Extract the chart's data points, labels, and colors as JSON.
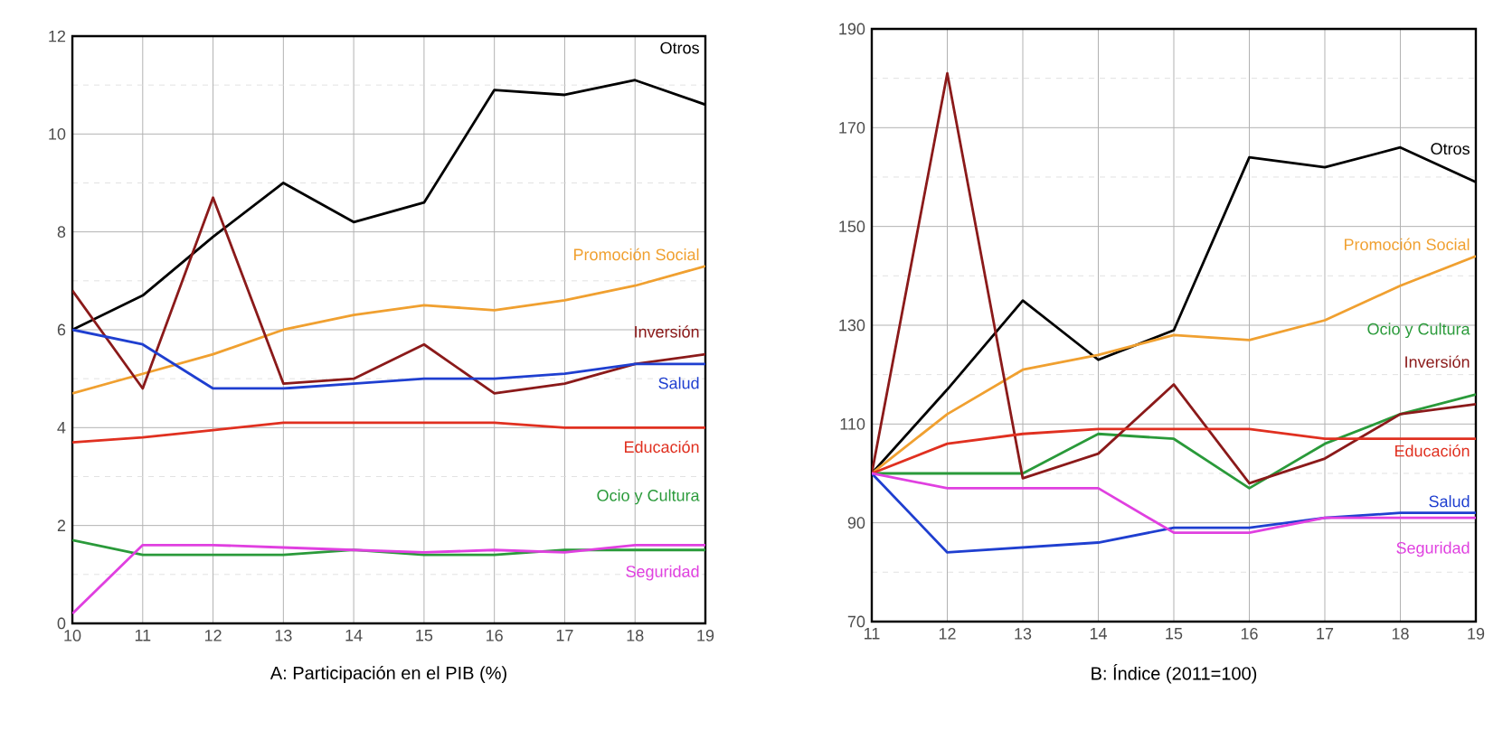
{
  "chart_data": [
    {
      "type": "line",
      "title": "A: Participación en el PIB (%)",
      "x": [
        10,
        11,
        12,
        13,
        14,
        15,
        16,
        17,
        18,
        19
      ],
      "xlim": [
        10,
        19
      ],
      "ylim": [
        0,
        12
      ],
      "xticks": [
        10,
        11,
        12,
        13,
        14,
        15,
        16,
        17,
        18,
        19
      ],
      "yticks": [
        0,
        2,
        4,
        6,
        8,
        10,
        12
      ],
      "grid": true,
      "legend": false,
      "series": [
        {
          "name": "Otros",
          "color": "#000000",
          "values": [
            6.0,
            6.7,
            7.9,
            9.0,
            8.2,
            8.6,
            10.9,
            10.8,
            11.1,
            10.6
          ]
        },
        {
          "name": "Promoción Social",
          "color": "#f0a030",
          "values": [
            4.7,
            5.1,
            5.5,
            6.0,
            6.3,
            6.5,
            6.4,
            6.6,
            6.9,
            7.3
          ]
        },
        {
          "name": "Inversión",
          "color": "#8b1a1a",
          "values": [
            6.8,
            4.8,
            8.7,
            4.9,
            5.0,
            5.7,
            4.7,
            4.9,
            5.3,
            5.5
          ]
        },
        {
          "name": "Salud",
          "color": "#1f3fd0",
          "values": [
            6.0,
            5.7,
            4.8,
            4.8,
            4.9,
            5.0,
            5.0,
            5.1,
            5.3,
            5.3
          ]
        },
        {
          "name": "Educación",
          "color": "#e03020",
          "values": [
            3.7,
            3.8,
            3.95,
            4.1,
            4.1,
            4.1,
            4.1,
            4.0,
            4.0,
            4.0
          ]
        },
        {
          "name": "Ocio y Cultura",
          "color": "#2a9a3a",
          "values": [
            1.7,
            1.4,
            1.4,
            1.4,
            1.5,
            1.4,
            1.4,
            1.5,
            1.5,
            1.5
          ]
        },
        {
          "name": "Seguridad",
          "color": "#e040e0",
          "values": [
            0.2,
            1.6,
            1.6,
            1.55,
            1.5,
            1.45,
            1.5,
            1.45,
            1.6,
            1.6
          ]
        }
      ]
    },
    {
      "type": "line",
      "title": "B: Índice (2011=100)",
      "x": [
        11,
        12,
        13,
        14,
        15,
        16,
        17,
        18,
        19
      ],
      "xlim": [
        11,
        19
      ],
      "ylim": [
        70,
        190
      ],
      "xticks": [
        11,
        12,
        13,
        14,
        15,
        16,
        17,
        18,
        19
      ],
      "yticks": [
        70,
        90,
        110,
        130,
        150,
        170,
        190
      ],
      "grid": true,
      "legend": false,
      "series": [
        {
          "name": "Otros",
          "color": "#000000",
          "values": [
            100,
            117,
            135,
            123,
            129,
            164,
            162,
            166,
            159
          ]
        },
        {
          "name": "Promoción Social",
          "color": "#f0a030",
          "values": [
            100,
            112,
            121,
            124,
            128,
            127,
            131,
            138,
            144
          ]
        },
        {
          "name": "Ocio y Cultura",
          "color": "#2a9a3a",
          "values": [
            100,
            100,
            100,
            108,
            107,
            97,
            106,
            112,
            116
          ]
        },
        {
          "name": "Inversión",
          "color": "#8b1a1a",
          "values": [
            100,
            181,
            99,
            104,
            118,
            98,
            103,
            112,
            114
          ]
        },
        {
          "name": "Educación",
          "color": "#e03020",
          "values": [
            100,
            106,
            108,
            109,
            109,
            109,
            107,
            107,
            107
          ]
        },
        {
          "name": "Salud",
          "color": "#1f3fd0",
          "values": [
            100,
            84,
            85,
            86,
            89,
            89,
            91,
            92,
            92
          ]
        },
        {
          "name": "Seguridad",
          "color": "#e040e0",
          "values": [
            100,
            97,
            97,
            97,
            88,
            88,
            91,
            91,
            91
          ]
        }
      ]
    }
  ]
}
